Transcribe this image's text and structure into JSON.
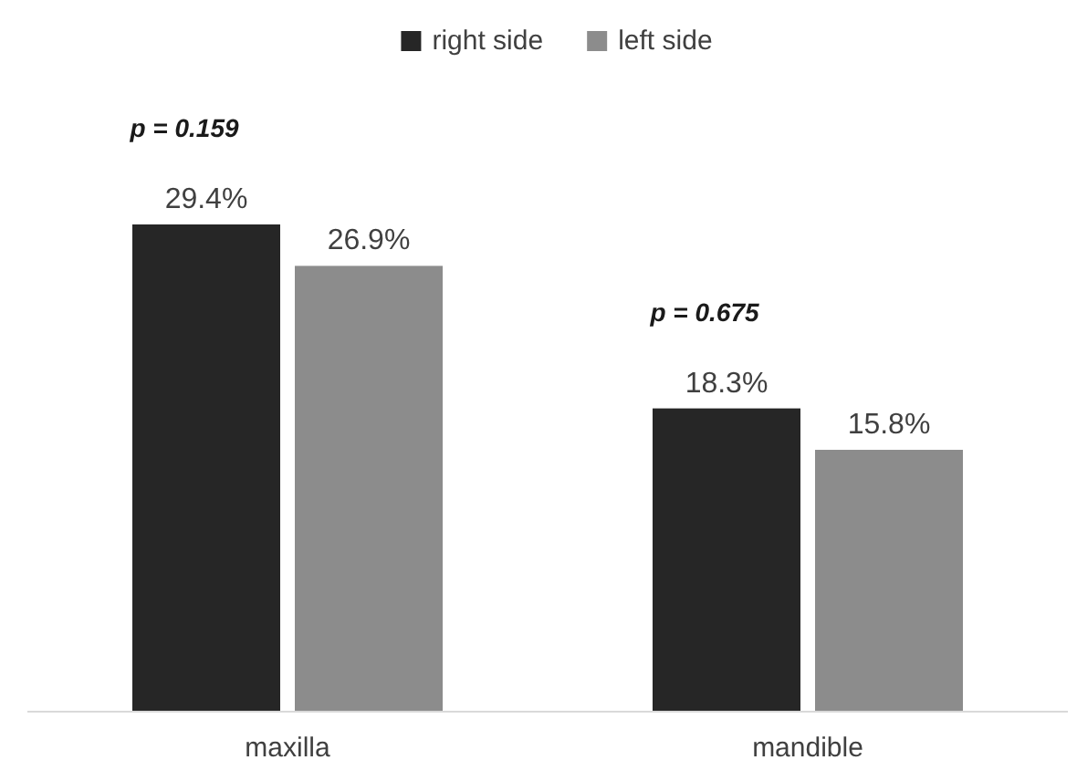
{
  "chart_data": {
    "type": "bar",
    "categories": [
      "maxilla",
      "mandible"
    ],
    "series": [
      {
        "name": "right side",
        "color": "#262626",
        "values": [
          29.4,
          18.3
        ],
        "value_labels": [
          "29.4%",
          "18.3%"
        ]
      },
      {
        "name": "left side",
        "color": "#8c8c8c",
        "values": [
          26.9,
          15.8
        ],
        "value_labels": [
          "26.9%",
          "15.8%"
        ]
      }
    ],
    "annotations": [
      "p = 0.159",
      "p = 0.675"
    ],
    "legend": "top"
  }
}
